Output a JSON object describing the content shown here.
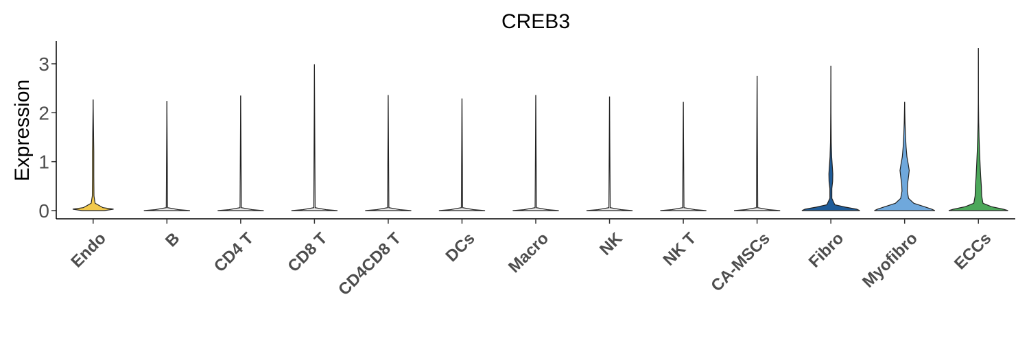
{
  "chart_data": {
    "type": "violin",
    "title": "CREB3",
    "xlabel": "",
    "ylabel": "Expression",
    "ylim": [
      -0.15,
      3.45
    ],
    "yticks": [
      0,
      1,
      2,
      3
    ],
    "grid": false,
    "legend": "none",
    "categories": [
      "Endo",
      "B",
      "CD4 T",
      "CD8 T",
      "CD4CD8 T",
      "DCs",
      "Macro",
      "NK",
      "NK T",
      "CA-MSCs",
      "Fibro",
      "Myofibro",
      "ECCs"
    ],
    "series": [
      {
        "category": "Endo",
        "max": 2.27,
        "color": "#f2c94c",
        "density": [
          [
            0,
            0.34
          ],
          [
            0.03,
            0.62
          ],
          [
            0.06,
            0.3
          ],
          [
            0.15,
            0.06
          ],
          [
            0.3,
            0.025
          ],
          [
            0.7,
            0.02
          ],
          [
            1.2,
            0.02
          ],
          [
            1.6,
            0.012
          ],
          [
            2.27,
            0
          ]
        ]
      },
      {
        "category": "B",
        "max": 2.24,
        "color": "#e8e8e8",
        "density": [
          [
            0,
            0.7
          ],
          [
            0.02,
            0.35
          ],
          [
            0.06,
            0.02
          ],
          [
            2.24,
            0
          ]
        ]
      },
      {
        "category": "CD4 T",
        "max": 2.35,
        "color": "#e8e8e8",
        "density": [
          [
            0,
            0.7
          ],
          [
            0.02,
            0.35
          ],
          [
            0.06,
            0.02
          ],
          [
            2.35,
            0
          ]
        ]
      },
      {
        "category": "CD8 T",
        "max": 2.99,
        "color": "#e8e8e8",
        "density": [
          [
            0,
            0.7
          ],
          [
            0.02,
            0.35
          ],
          [
            0.06,
            0.02
          ],
          [
            2.99,
            0
          ]
        ]
      },
      {
        "category": "CD4CD8 T",
        "max": 2.36,
        "color": "#e8e8e8",
        "density": [
          [
            0,
            0.7
          ],
          [
            0.02,
            0.35
          ],
          [
            0.06,
            0.02
          ],
          [
            2.36,
            0
          ]
        ]
      },
      {
        "category": "DCs",
        "max": 2.29,
        "color": "#e8e8e8",
        "density": [
          [
            0,
            0.7
          ],
          [
            0.02,
            0.35
          ],
          [
            0.06,
            0.02
          ],
          [
            2.29,
            0
          ]
        ]
      },
      {
        "category": "Macro",
        "max": 2.36,
        "color": "#e8e8e8",
        "density": [
          [
            0,
            0.7
          ],
          [
            0.02,
            0.35
          ],
          [
            0.06,
            0.02
          ],
          [
            2.36,
            0
          ]
        ]
      },
      {
        "category": "NK",
        "max": 2.33,
        "color": "#e8e8e8",
        "density": [
          [
            0,
            0.7
          ],
          [
            0.02,
            0.35
          ],
          [
            0.06,
            0.02
          ],
          [
            2.33,
            0
          ]
        ]
      },
      {
        "category": "NK T",
        "max": 2.22,
        "color": "#e8e8e8",
        "density": [
          [
            0,
            0.7
          ],
          [
            0.02,
            0.35
          ],
          [
            0.06,
            0.02
          ],
          [
            2.22,
            0
          ]
        ]
      },
      {
        "category": "CA-MSCs",
        "max": 2.75,
        "color": "#e8e8e8",
        "density": [
          [
            0,
            0.7
          ],
          [
            0.02,
            0.35
          ],
          [
            0.06,
            0.02
          ],
          [
            2.75,
            0
          ]
        ]
      },
      {
        "category": "Fibro",
        "max": 2.96,
        "color": "#1f5c99",
        "density": [
          [
            0,
            0.88
          ],
          [
            0.03,
            0.78
          ],
          [
            0.07,
            0.45
          ],
          [
            0.12,
            0.12
          ],
          [
            0.25,
            0.03
          ],
          [
            0.45,
            0.03
          ],
          [
            0.6,
            0.055
          ],
          [
            0.75,
            0.06
          ],
          [
            0.9,
            0.045
          ],
          [
            1.1,
            0.025
          ],
          [
            1.4,
            0.012
          ],
          [
            2.0,
            0.005
          ],
          [
            2.96,
            0
          ]
        ]
      },
      {
        "category": "Myofibro",
        "max": 2.22,
        "color": "#6fa8dc",
        "density": [
          [
            0,
            0.92
          ],
          [
            0.03,
            0.82
          ],
          [
            0.08,
            0.6
          ],
          [
            0.15,
            0.28
          ],
          [
            0.25,
            0.12
          ],
          [
            0.4,
            0.08
          ],
          [
            0.55,
            0.09
          ],
          [
            0.7,
            0.12
          ],
          [
            0.82,
            0.14
          ],
          [
            0.95,
            0.11
          ],
          [
            1.1,
            0.07
          ],
          [
            1.3,
            0.045
          ],
          [
            1.55,
            0.025
          ],
          [
            1.8,
            0.012
          ],
          [
            2.22,
            0
          ]
        ]
      },
      {
        "category": "ECCs",
        "max": 3.32,
        "color": "#4ca85a",
        "density": [
          [
            0,
            0.9
          ],
          [
            0.03,
            0.75
          ],
          [
            0.08,
            0.4
          ],
          [
            0.15,
            0.14
          ],
          [
            0.3,
            0.1
          ],
          [
            0.5,
            0.09
          ],
          [
            0.7,
            0.07
          ],
          [
            0.9,
            0.055
          ],
          [
            1.2,
            0.035
          ],
          [
            1.5,
            0.02
          ],
          [
            1.8,
            0.01
          ],
          [
            2.2,
            0.004
          ],
          [
            3.32,
            0
          ]
        ]
      }
    ]
  }
}
